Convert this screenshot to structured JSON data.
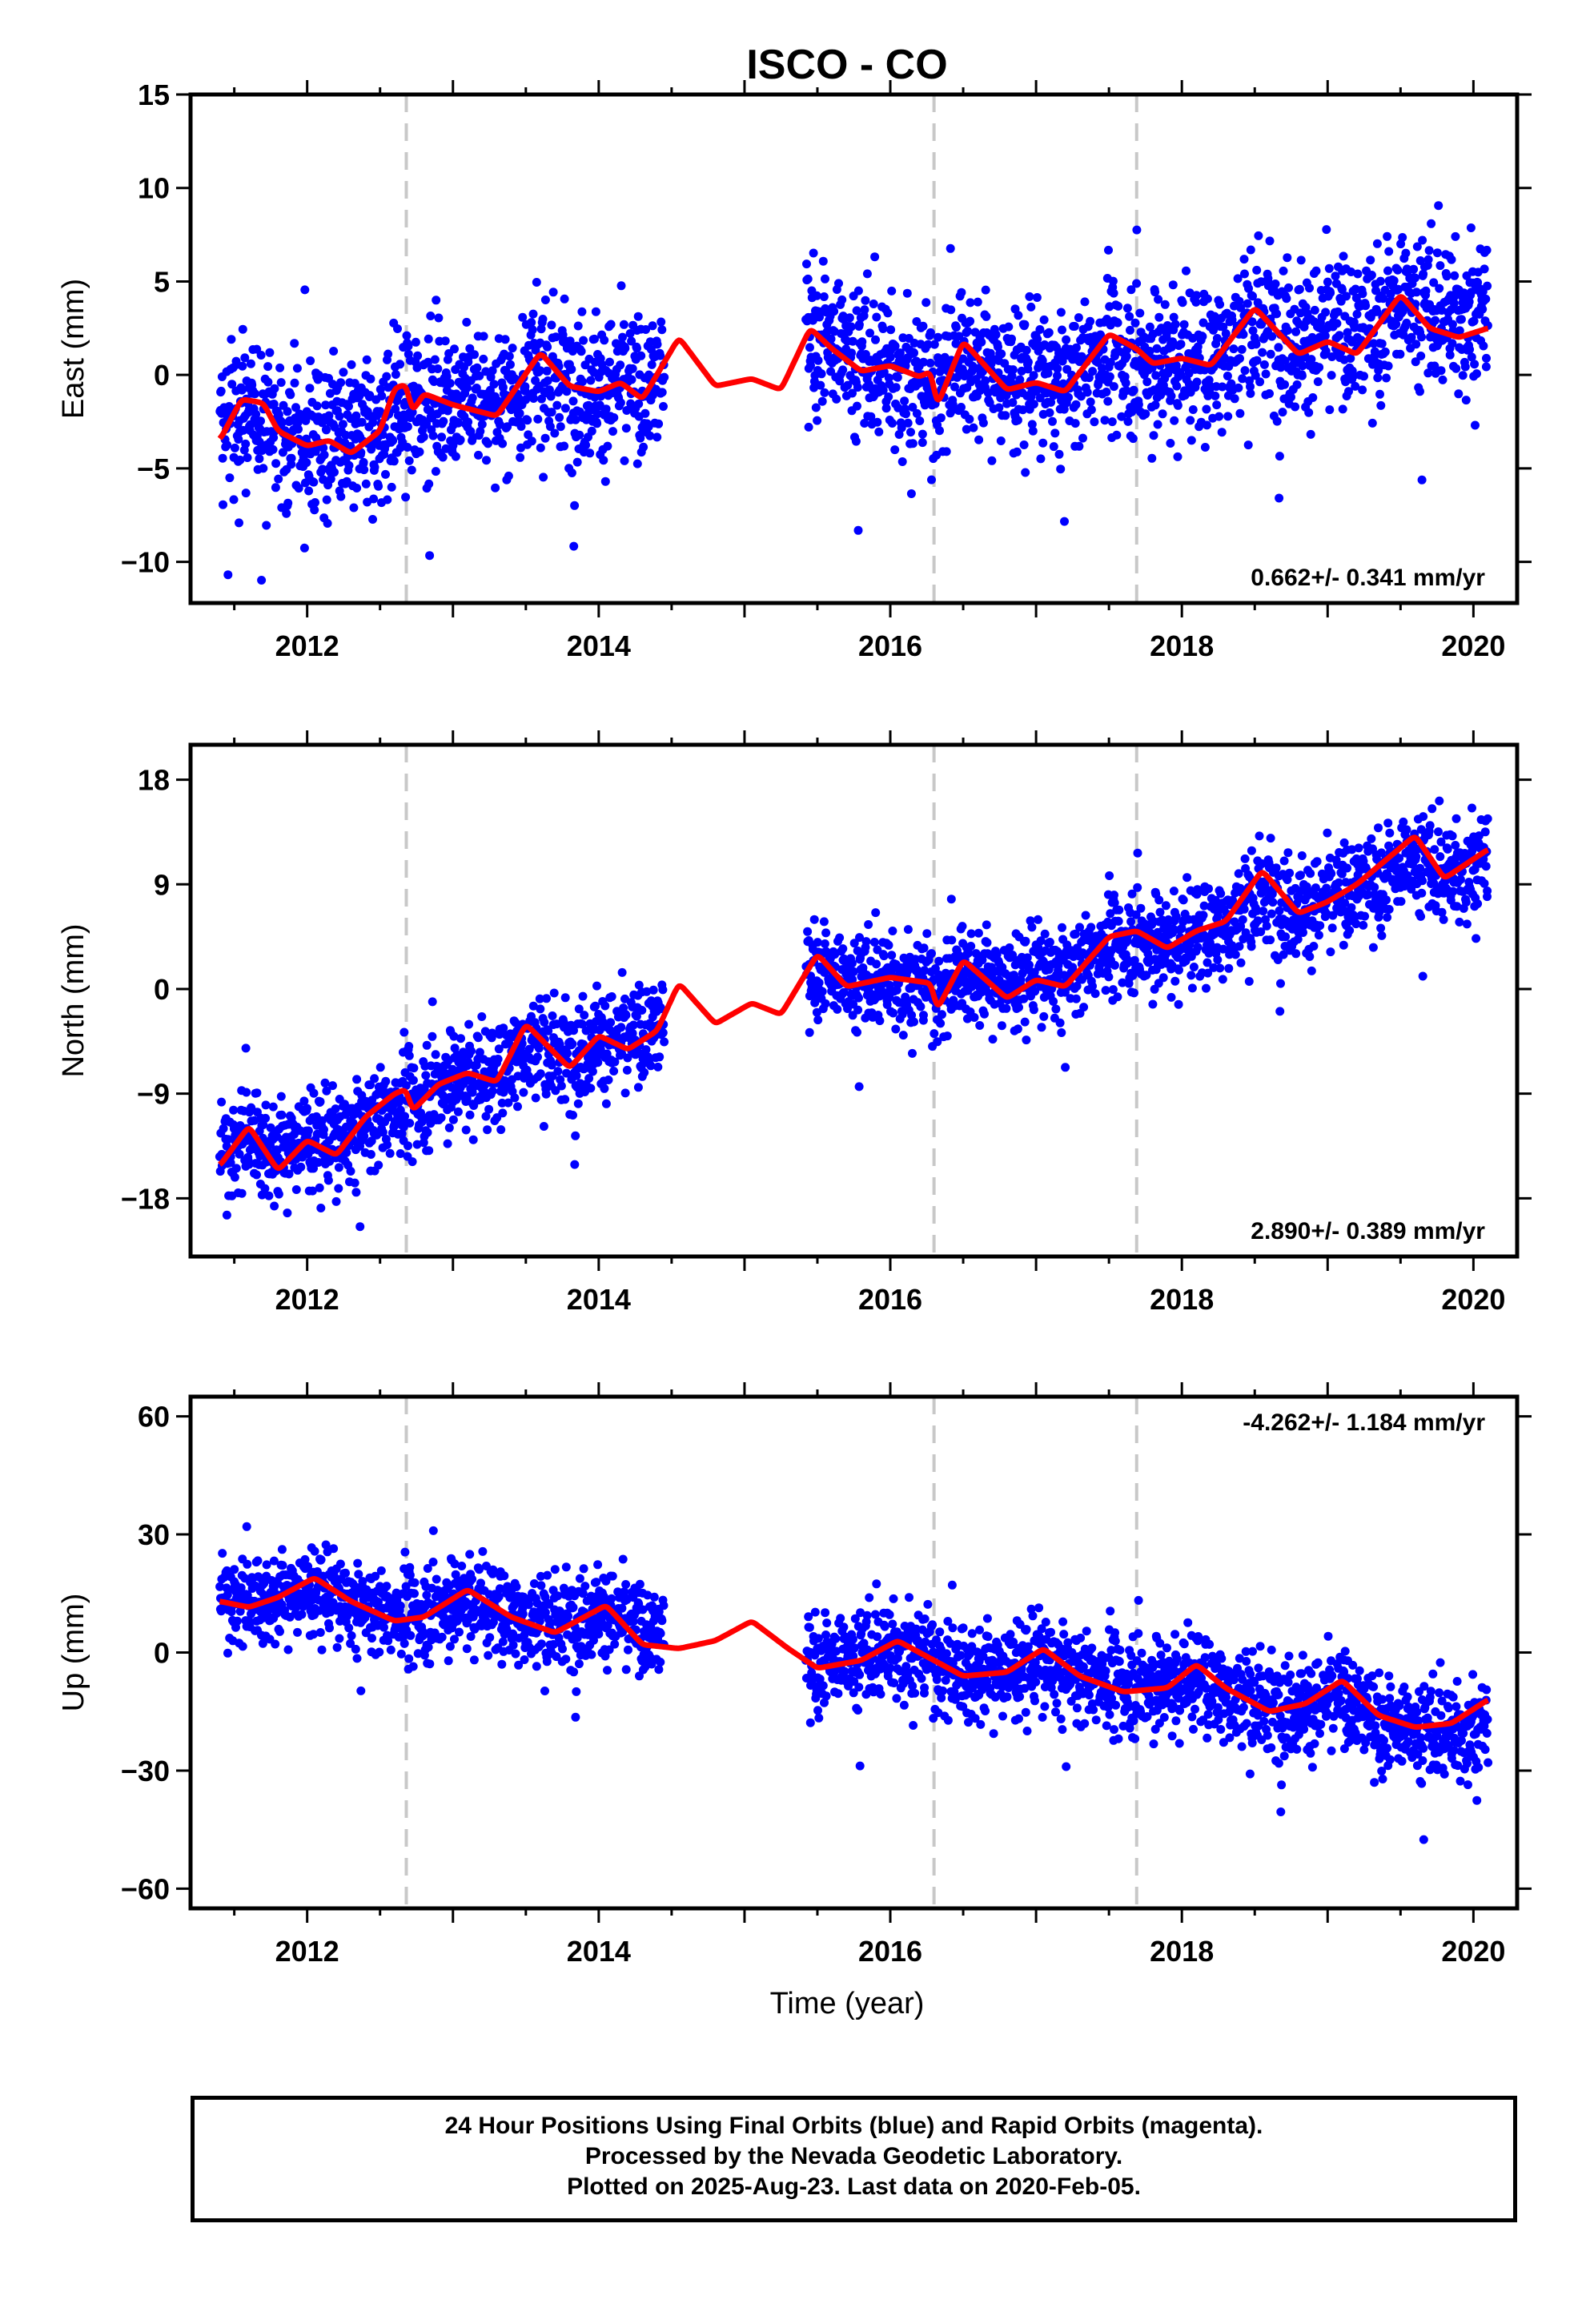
{
  "title": "ISCO - CO",
  "xlabel": "Time (year)",
  "caption": [
    "24 Hour Positions Using Final Orbits (blue) and Rapid Orbits (magenta).",
    "Processed by the Nevada Geodetic Laboratory.",
    "Plotted on 2025-Aug-23. Last data on 2020-Feb-05."
  ],
  "colors": {
    "points": "#0000ff",
    "model": "#ff0000",
    "events": "#c8c8c8",
    "axes": "#000000"
  },
  "chart_data": [
    {
      "type": "scatter",
      "component": "east",
      "ylabel": "East (mm)",
      "xlim": [
        2011.2,
        2020.3
      ],
      "ylim": [
        -12.2,
        15.0
      ],
      "xticks": [
        2012,
        2014,
        2016,
        2018,
        2020
      ],
      "yticks": [
        -10,
        -5,
        0,
        5,
        10,
        15
      ],
      "yticklabels": [
        "−10",
        "−5",
        "0",
        "5",
        "10",
        "15"
      ],
      "rate": "0.662+/- 0.341 mm/yr",
      "rate_position": "bottom-right",
      "event_lines_x": [
        2012.68,
        2016.3,
        2017.69
      ],
      "data_gap": [
        2014.45,
        2015.42
      ],
      "model_x": [
        2011.4,
        2011.55,
        2011.7,
        2011.8,
        2012.0,
        2012.15,
        2012.3,
        2012.5,
        2012.6,
        2012.68,
        2012.72,
        2012.8,
        2013.0,
        2013.3,
        2013.6,
        2013.8,
        2014.0,
        2014.15,
        2014.3,
        2014.55,
        2014.8,
        2015.05,
        2015.25,
        2015.45,
        2015.6,
        2015.8,
        2016.0,
        2016.2,
        2016.28,
        2016.32,
        2016.5,
        2016.8,
        2017.0,
        2017.2,
        2017.5,
        2017.69,
        2017.8,
        2018.0,
        2018.2,
        2018.5,
        2018.8,
        2019.0,
        2019.2,
        2019.5,
        2019.7,
        2019.9,
        2020.1
      ],
      "model_y": [
        -3.5,
        -1.3,
        -1.5,
        -3.0,
        -3.8,
        -3.5,
        -4.2,
        -3.0,
        -0.7,
        -0.5,
        -2.0,
        -1.0,
        -1.6,
        -2.2,
        1.2,
        -0.6,
        -0.9,
        -0.4,
        -1.3,
        2.0,
        -0.6,
        -0.2,
        -0.8,
        2.5,
        1.4,
        0.2,
        0.5,
        -0.1,
        0.2,
        -1.7,
        1.8,
        -0.8,
        -0.4,
        -0.9,
        2.2,
        1.4,
        0.6,
        0.9,
        0.5,
        3.6,
        1.1,
        1.8,
        1.1,
        4.3,
        2.5,
        2.0,
        2.5
      ],
      "point_segments": [
        {
          "x0": 2011.4,
          "x1": 2012.68,
          "center": [
            -3.0,
            -3.5
          ],
          "spread": 2.8
        },
        {
          "x0": 2012.68,
          "x1": 2014.45,
          "center": [
            -1.3,
            -0.5
          ],
          "spread": 2.7
        },
        {
          "x0": 2015.42,
          "x1": 2016.3,
          "center": [
            3.0,
            -1.0
          ],
          "spread": 2.8
        },
        {
          "x0": 2016.3,
          "x1": 2017.69,
          "center": [
            0.3,
            0.6
          ],
          "spread": 2.6
        },
        {
          "x0": 2017.69,
          "x1": 2020.1,
          "center": [
            0.2,
            5.0
          ],
          "spread": 2.8
        }
      ]
    },
    {
      "type": "scatter",
      "component": "north",
      "ylabel": "North (mm)",
      "xlim": [
        2011.2,
        2020.3
      ],
      "ylim": [
        -23,
        21
      ],
      "xticks": [
        2012,
        2014,
        2016,
        2018,
        2020
      ],
      "yticks": [
        -18,
        -9,
        0,
        9,
        18
      ],
      "yticklabels": [
        "−18",
        "−9",
        "0",
        "9",
        "18"
      ],
      "rate": "2.890+/- 0.389 mm/yr",
      "rate_position": "bottom-right",
      "event_lines_x": [
        2012.68,
        2016.3,
        2017.69
      ],
      "data_gap": [
        2014.45,
        2015.42
      ],
      "model_x": [
        2011.4,
        2011.6,
        2011.8,
        2012.0,
        2012.2,
        2012.4,
        2012.6,
        2012.68,
        2012.72,
        2012.9,
        2013.1,
        2013.3,
        2013.5,
        2013.8,
        2014.0,
        2014.2,
        2014.4,
        2014.55,
        2014.8,
        2015.05,
        2015.25,
        2015.5,
        2015.7,
        2016.0,
        2016.28,
        2016.32,
        2016.5,
        2016.8,
        2017.0,
        2017.2,
        2017.5,
        2017.69,
        2017.9,
        2018.1,
        2018.3,
        2018.55,
        2018.8,
        2019.0,
        2019.2,
        2019.6,
        2019.8,
        2020.1
      ],
      "model_y": [
        -15.2,
        -11.8,
        -15.6,
        -13.0,
        -14.3,
        -11.0,
        -9.0,
        -8.6,
        -10.5,
        -8.2,
        -7.2,
        -8.0,
        -3.0,
        -6.8,
        -4.0,
        -5.2,
        -3.6,
        0.5,
        -3.0,
        -1.2,
        -2.2,
        3.0,
        0.2,
        1.0,
        0.5,
        -1.8,
        2.5,
        -0.8,
        0.8,
        0.2,
        4.5,
        5.0,
        3.5,
        5.0,
        5.8,
        10.2,
        6.5,
        7.5,
        9.0,
        13.2,
        9.5,
        12.0
      ],
      "point_segments": [
        {
          "x0": 2011.4,
          "x1": 2012.68,
          "center": [
            -13.5,
            -11.0
          ],
          "spread": 3.0
        },
        {
          "x0": 2012.68,
          "x1": 2014.45,
          "center": [
            -9.0,
            -3.0
          ],
          "spread": 3.0
        },
        {
          "x0": 2015.42,
          "x1": 2016.3,
          "center": [
            1.5,
            0.5
          ],
          "spread": 2.8
        },
        {
          "x0": 2016.3,
          "x1": 2017.69,
          "center": [
            0.5,
            4.0
          ],
          "spread": 2.8
        },
        {
          "x0": 2017.69,
          "x1": 2020.1,
          "center": [
            3.5,
            11.0
          ],
          "spread": 3.0
        }
      ]
    },
    {
      "type": "scatter",
      "component": "up",
      "ylabel": "Up (mm)",
      "xlim": [
        2011.2,
        2020.3
      ],
      "ylim": [
        -65,
        65
      ],
      "xticks": [
        2012,
        2014,
        2016,
        2018,
        2020
      ],
      "yticks": [
        -60,
        -30,
        0,
        30,
        60
      ],
      "yticklabels": [
        "−60",
        "−30",
        "0",
        "30",
        "60"
      ],
      "rate": "-4.262+/- 1.184 mm/yr",
      "rate_position": "top-right",
      "event_lines_x": [
        2012.68,
        2016.3,
        2017.69
      ],
      "data_gap": [
        2014.45,
        2015.42
      ],
      "model_x": [
        2011.4,
        2011.6,
        2011.8,
        2012.05,
        2012.3,
        2012.6,
        2012.8,
        2013.1,
        2013.4,
        2013.7,
        2014.05,
        2014.3,
        2014.55,
        2014.8,
        2015.05,
        2015.3,
        2015.5,
        2015.8,
        2016.05,
        2016.3,
        2016.5,
        2016.8,
        2017.05,
        2017.3,
        2017.6,
        2017.9,
        2018.1,
        2018.3,
        2018.6,
        2018.85,
        2019.1,
        2019.35,
        2019.6,
        2019.85,
        2020.1
      ],
      "model_y": [
        13,
        11.5,
        14,
        19,
        13,
        8,
        9,
        16,
        9,
        5,
        12,
        2,
        1,
        3,
        8,
        1,
        -4,
        -2,
        3,
        -2,
        -6,
        -5,
        1,
        -6,
        -10,
        -9,
        -3,
        -9,
        -15,
        -13,
        -7,
        -16,
        -19,
        -18,
        -12
      ],
      "point_segments": [
        {
          "x0": 2011.4,
          "x1": 2012.68,
          "center": [
            15.0,
            12.0
          ],
          "spread": 7.5
        },
        {
          "x0": 2012.68,
          "x1": 2014.45,
          "center": [
            12.0,
            8.0
          ],
          "spread": 8.0
        },
        {
          "x0": 2015.42,
          "x1": 2016.3,
          "center": [
            0.0,
            0.0
          ],
          "spread": 8.5
        },
        {
          "x0": 2016.3,
          "x1": 2017.69,
          "center": [
            -4.0,
            -5.0
          ],
          "spread": 8.5
        },
        {
          "x0": 2017.69,
          "x1": 2020.1,
          "center": [
            -6.0,
            -24.0
          ],
          "spread": 8.5
        }
      ]
    }
  ]
}
